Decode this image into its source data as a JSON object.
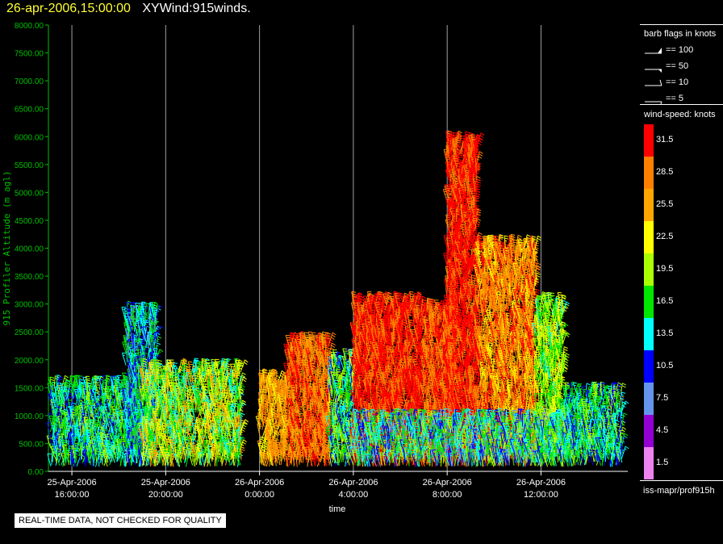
{
  "header": {
    "date": "26-apr-2006,15:00:00",
    "title": "XYWind:915winds."
  },
  "legend": {
    "barb_title": "barb flags in knots",
    "barbs": [
      {
        "label": "== 100",
        "icon": "barb-pennant-icon"
      },
      {
        "label": "== 50",
        "icon": "barb-flag-icon"
      },
      {
        "label": "== 10",
        "icon": "barb-full-icon"
      },
      {
        "label": "== 5",
        "icon": "barb-half-icon"
      }
    ],
    "speed_title": "wind-speed: knots",
    "speed_bins": [
      {
        "label": "31.5",
        "color": "#ff0000"
      },
      {
        "label": "28.5",
        "color": "#ff8000"
      },
      {
        "label": "25.5",
        "color": "#ffa500"
      },
      {
        "label": "22.5",
        "color": "#ffff00"
      },
      {
        "label": "19.5",
        "color": "#aaff00"
      },
      {
        "label": "16.5",
        "color": "#00e600"
      },
      {
        "label": "13.5",
        "color": "#00ffff"
      },
      {
        "label": "10.5",
        "color": "#0000ff"
      },
      {
        "label": "7.5",
        "color": "#6495ed"
      },
      {
        "label": "4.5",
        "color": "#9400d3"
      },
      {
        "label": "1.5",
        "color": "#ee82ee"
      }
    ]
  },
  "footer": {
    "source": "iss-mapr/prof915h",
    "qc_notice": "REAL-TIME DATA, NOT CHECKED FOR QUALITY"
  },
  "chart_data": {
    "type": "wind-barb time-height",
    "ylabel": "915 Profiler Altitude (m agl)",
    "xlabel": "time",
    "ylim": [
      0,
      8000
    ],
    "yticks": [
      "0.00",
      "500.00",
      "1000.00",
      "1500.00",
      "2000.00",
      "2500.00",
      "3000.00",
      "3500.00",
      "4000.00",
      "4500.00",
      "5000.00",
      "5500.00",
      "6000.00",
      "6500.00",
      "7000.00",
      "7500.00",
      "8000.00"
    ],
    "xticks": [
      {
        "t": 0,
        "date": "25-Apr-2006",
        "time": "16:00:00"
      },
      {
        "t": 4,
        "date": "25-Apr-2006",
        "time": "20:00:00"
      },
      {
        "t": 8,
        "date": "26-Apr-2006",
        "time": "0:00:00"
      },
      {
        "t": 12,
        "date": "26-Apr-2006",
        "time": "4:00:00"
      },
      {
        "t": 16,
        "date": "26-Apr-2006",
        "time": "8:00:00"
      },
      {
        "t": 20,
        "date": "26-Apr-2006",
        "time": "12:00:00"
      }
    ],
    "x_hours_range": [
      -1,
      23.7
    ],
    "grid": "vertical lines at ticks",
    "regions": [
      {
        "t0": -0.9,
        "t1": 3.0,
        "top": 1500,
        "speed": [
          10,
          20
        ]
      },
      {
        "t0": 2.3,
        "t1": 3.6,
        "top": 2800,
        "speed": [
          8,
          18
        ]
      },
      {
        "t0": 3.0,
        "t1": 7.2,
        "top": 1800,
        "speed": [
          12,
          26
        ]
      },
      {
        "t0": 8.0,
        "t1": 9.2,
        "top": 1600,
        "speed": [
          22,
          30
        ]
      },
      {
        "t0": 9.2,
        "t1": 11.0,
        "top": 2300,
        "speed": [
          24,
          33
        ]
      },
      {
        "t0": 11.0,
        "t1": 12.0,
        "top": 2000,
        "speed": [
          10,
          22
        ]
      },
      {
        "t0": 12.0,
        "t1": 15.0,
        "top": 3000,
        "speed": [
          28,
          34
        ]
      },
      {
        "t0": 15.0,
        "t1": 16.3,
        "top": 2900,
        "speed": [
          26,
          33
        ]
      },
      {
        "t0": 16.0,
        "t1": 17.3,
        "top": 5900,
        "speed": [
          28,
          34
        ]
      },
      {
        "t0": 17.3,
        "t1": 19.8,
        "top": 4000,
        "speed": [
          22,
          32
        ]
      },
      {
        "t0": 19.8,
        "t1": 21.0,
        "top": 3000,
        "speed": [
          14,
          24
        ]
      },
      {
        "t0": 12.0,
        "t1": 21.5,
        "top": 900,
        "speed": [
          8,
          20
        ]
      },
      {
        "t0": 21.0,
        "t1": 23.5,
        "top": 1400,
        "speed": [
          10,
          20
        ]
      }
    ]
  }
}
